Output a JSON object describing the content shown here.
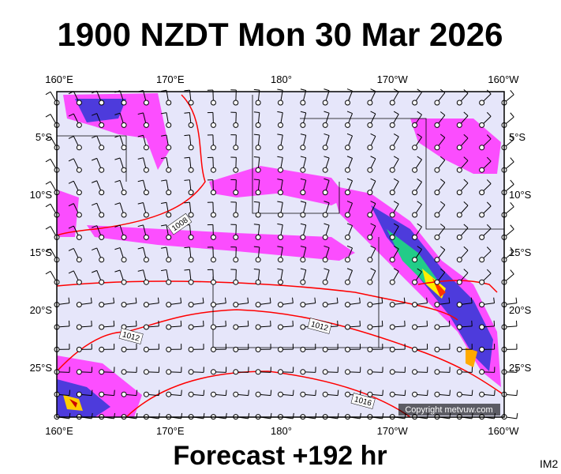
{
  "header": {
    "title": "1900 NZDT Mon 30 Mar 2026"
  },
  "map": {
    "lon_labels": [
      "160°E",
      "170°E",
      "180°",
      "170°W",
      "160°W"
    ],
    "lat_labels": [
      "5°S",
      "10°S",
      "15°S",
      "20°S",
      "25°S"
    ],
    "isobar_labels": [
      "1008",
      "1012",
      "1012",
      "1016"
    ],
    "copyright": "Copyright metvuw.com"
  },
  "footer": {
    "forecast": "Forecast +192 hr",
    "code": "IM2"
  }
}
